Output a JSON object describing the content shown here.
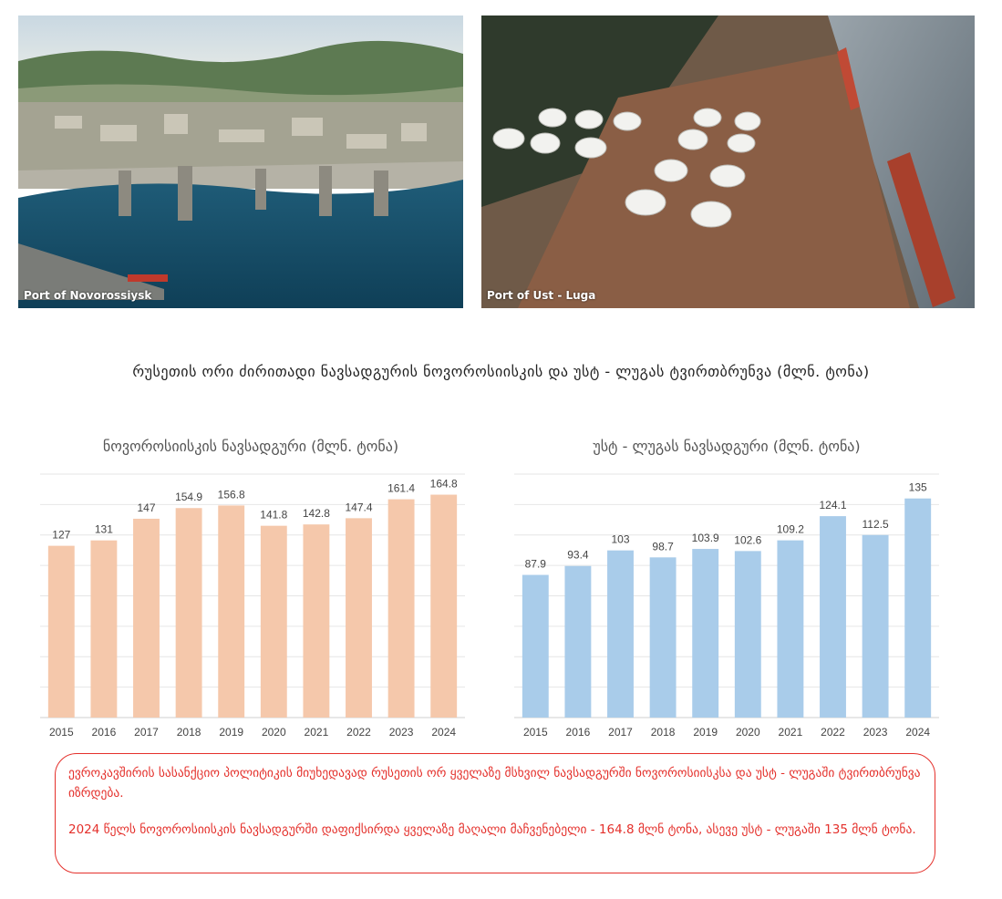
{
  "photos": [
    {
      "caption": "Port of Novorossiysk"
    },
    {
      "caption": "Port of Ust - Luga"
    }
  ],
  "main_title": "რუსეთის ორი ძირითადი ნავსადგურის ნოვოროსიისკის და უსტ - ლუგას ტვირთბრუნვა (მლნ. ტონა)",
  "colors": {
    "novorossiysk_bar": "#f5c8ab",
    "ustluga_bar": "#a9ccea",
    "note_red": "#e4302b"
  },
  "chart_data": [
    {
      "type": "bar",
      "title": "ნოვოროსიისკის ნავსადგური (მლნ. ტონა)",
      "categories": [
        "2015",
        "2016",
        "2017",
        "2018",
        "2019",
        "2020",
        "2021",
        "2022",
        "2023",
        "2024"
      ],
      "values": [
        127,
        131,
        147,
        154.9,
        156.8,
        141.8,
        142.8,
        147.4,
        161.4,
        164.8
      ],
      "value_labels": [
        "127",
        "131",
        "147",
        "154.9",
        "156.8",
        "141.8",
        "142.8",
        "147.4",
        "161.4",
        "164.8"
      ],
      "ylim": [
        0,
        180
      ],
      "grid": true,
      "color": "#f5c8ab"
    },
    {
      "type": "bar",
      "title": "უსტ - ლუგას ნავსადგური (მლნ. ტონა)",
      "categories": [
        "2015",
        "2016",
        "2017",
        "2018",
        "2019",
        "2020",
        "2021",
        "2022",
        "2023",
        "2024"
      ],
      "values": [
        87.9,
        93.4,
        103,
        98.7,
        103.9,
        102.6,
        109.2,
        124.1,
        112.5,
        135
      ],
      "value_labels": [
        "87.9",
        "93.4",
        "103",
        "98.7",
        "103.9",
        "102.6",
        "109.2",
        "124.1",
        "112.5",
        "135"
      ],
      "ylim": [
        0,
        150
      ],
      "grid": true,
      "color": "#a9ccea"
    }
  ],
  "note": {
    "paragraph1": "ევროკავშირის სასანქციო პოლიტიკის მიუხედავად რუსეთის ორ ყველაზე მსხვილ ნავსადგურში ნოვოროსიისკსა და უსტ - ლუგაში ტვირთბრუნვა იზრდება.",
    "paragraph2": "2024 წელს ნოვოროსიისკის ნავსადგურში დაფიქსირდა ყველაზე მაღალი მაჩვენებელი - 164.8 მლნ ტონა, ასევე უსტ - ლუგაში 135 მლნ ტონა."
  }
}
